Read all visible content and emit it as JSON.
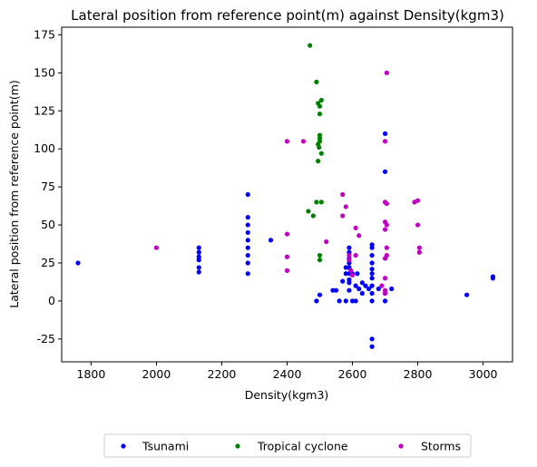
{
  "chart_data": {
    "type": "scatter",
    "title": "Lateral position from reference point(m) against Density(kgm3)",
    "xlabel": "Density(kgm3)",
    "ylabel": "Lateral position from reference point(m)",
    "xlim": [
      1710,
      3090
    ],
    "ylim": [
      -40,
      180
    ],
    "xticks": [
      1800,
      2000,
      2200,
      2400,
      2600,
      2800,
      3000
    ],
    "yticks": [
      -25,
      0,
      25,
      50,
      75,
      100,
      125,
      150,
      175
    ],
    "grid": false,
    "legend_position": "bottom-center",
    "series": [
      {
        "name": "Tsunami",
        "color": "#0000ff",
        "points": [
          [
            1760,
            25
          ],
          [
            2130,
            35
          ],
          [
            2130,
            32
          ],
          [
            2130,
            29
          ],
          [
            2130,
            27
          ],
          [
            2130,
            22
          ],
          [
            2130,
            19
          ],
          [
            2280,
            70
          ],
          [
            2280,
            55
          ],
          [
            2280,
            50
          ],
          [
            2280,
            45
          ],
          [
            2280,
            40
          ],
          [
            2280,
            35
          ],
          [
            2280,
            30
          ],
          [
            2280,
            25
          ],
          [
            2280,
            18
          ],
          [
            2350,
            40
          ],
          [
            2490,
            0
          ],
          [
            2500,
            4
          ],
          [
            2540,
            7
          ],
          [
            2550,
            7
          ],
          [
            2560,
            0
          ],
          [
            2570,
            13
          ],
          [
            2580,
            18
          ],
          [
            2580,
            22
          ],
          [
            2580,
            0
          ],
          [
            2590,
            35
          ],
          [
            2590,
            32
          ],
          [
            2590,
            28
          ],
          [
            2590,
            25
          ],
          [
            2590,
            22
          ],
          [
            2590,
            18
          ],
          [
            2590,
            14
          ],
          [
            2590,
            12
          ],
          [
            2590,
            7
          ],
          [
            2600,
            0
          ],
          [
            2600,
            18
          ],
          [
            2610,
            0
          ],
          [
            2610,
            10
          ],
          [
            2615,
            18
          ],
          [
            2620,
            8
          ],
          [
            2630,
            12
          ],
          [
            2630,
            5
          ],
          [
            2640,
            10
          ],
          [
            2650,
            8
          ],
          [
            2660,
            37
          ],
          [
            2660,
            35
          ],
          [
            2660,
            30
          ],
          [
            2660,
            25
          ],
          [
            2660,
            21
          ],
          [
            2660,
            18
          ],
          [
            2660,
            15
          ],
          [
            2660,
            10
          ],
          [
            2660,
            5
          ],
          [
            2660,
            0
          ],
          [
            2660,
            -25
          ],
          [
            2660,
            -30
          ],
          [
            2680,
            8
          ],
          [
            2700,
            110
          ],
          [
            2700,
            85
          ],
          [
            2700,
            5
          ],
          [
            2700,
            0
          ],
          [
            2720,
            8
          ],
          [
            2950,
            4
          ],
          [
            3030,
            16
          ],
          [
            3030,
            15
          ]
        ]
      },
      {
        "name": "Tropical cyclone",
        "color": "#008000",
        "points": [
          [
            2470,
            168
          ],
          [
            2490,
            144
          ],
          [
            2495,
            130
          ],
          [
            2500,
            128
          ],
          [
            2505,
            132
          ],
          [
            2500,
            123
          ],
          [
            2500,
            109
          ],
          [
            2500,
            107
          ],
          [
            2500,
            105
          ],
          [
            2495,
            103
          ],
          [
            2498,
            101
          ],
          [
            2505,
            97
          ],
          [
            2495,
            92
          ],
          [
            2490,
            65
          ],
          [
            2505,
            65
          ],
          [
            2465,
            59
          ],
          [
            2480,
            56
          ],
          [
            2500,
            30
          ],
          [
            2500,
            27
          ]
        ]
      },
      {
        "name": "Storms",
        "color": "#bf00bf",
        "points": [
          [
            2000,
            35
          ],
          [
            2400,
            105
          ],
          [
            2450,
            105
          ],
          [
            2400,
            44
          ],
          [
            2400,
            29
          ],
          [
            2400,
            20
          ],
          [
            2520,
            39
          ],
          [
            2570,
            70
          ],
          [
            2570,
            56
          ],
          [
            2580,
            62
          ],
          [
            2590,
            27
          ],
          [
            2590,
            30
          ],
          [
            2595,
            20
          ],
          [
            2600,
            17
          ],
          [
            2610,
            48
          ],
          [
            2620,
            43
          ],
          [
            2610,
            30
          ],
          [
            2690,
            10
          ],
          [
            2700,
            15
          ],
          [
            2700,
            7
          ],
          [
            2700,
            5
          ],
          [
            2700,
            65
          ],
          [
            2705,
            64
          ],
          [
            2700,
            52
          ],
          [
            2705,
            50
          ],
          [
            2700,
            47
          ],
          [
            2705,
            35
          ],
          [
            2700,
            28
          ],
          [
            2705,
            30
          ],
          [
            2705,
            150
          ],
          [
            2700,
            105
          ],
          [
            2790,
            65
          ],
          [
            2800,
            66
          ],
          [
            2800,
            50
          ],
          [
            2805,
            35
          ],
          [
            2805,
            32
          ]
        ]
      }
    ]
  }
}
